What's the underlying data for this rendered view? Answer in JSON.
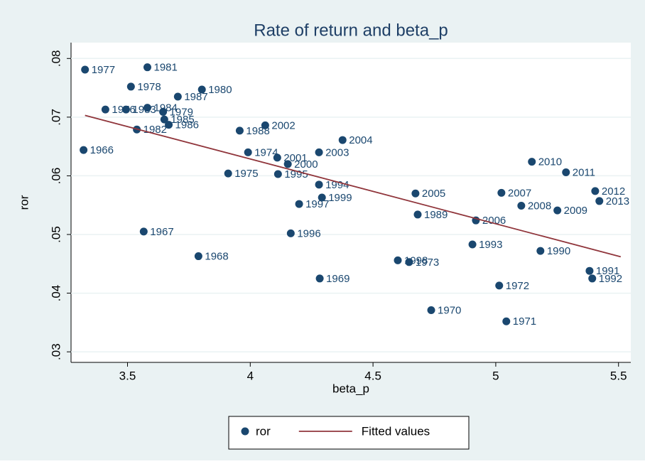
{
  "chart_data": {
    "type": "scatter",
    "title": "Rate of return and beta_p",
    "x_label": "beta_p",
    "y_label": "ror",
    "xlim": [
      3.27,
      5.55
    ],
    "ylim": [
      0.0282,
      0.0827
    ],
    "xticks": [
      3.5,
      4,
      4.5,
      5,
      5.5
    ],
    "yticks": [
      {
        "value": 0.03,
        "label": ".03"
      },
      {
        "value": 0.04,
        "label": ".04"
      },
      {
        "value": 0.05,
        "label": ".05"
      },
      {
        "value": 0.06,
        "label": ".06"
      },
      {
        "value": 0.07,
        "label": ".07"
      },
      {
        "value": 0.08,
        "label": ".08"
      }
    ],
    "grid": true,
    "legend_position": "bottom",
    "series": [
      {
        "name": "ror",
        "type": "scatter",
        "color": "#1a476f",
        "point_labels": [
          "1977",
          "1981",
          "1978",
          "1987",
          "1980",
          "1976",
          "1983",
          "1984",
          "1979",
          "1985",
          "1982",
          "1986",
          "1988",
          "2002",
          "2004",
          "1966",
          "1974",
          "2001",
          "2003",
          "2000",
          "1975",
          "1995",
          "1994",
          "1999",
          "1997",
          "2005",
          "1989",
          "2007",
          "2008",
          "2009",
          "2010",
          "2011",
          "2012",
          "2013",
          "2006",
          "1967",
          "1996",
          "1993",
          "1990",
          "1968",
          "1998",
          "1973",
          "1969",
          "1991",
          "1992",
          "1972",
          "1970",
          "1971"
        ],
        "x": [
          3.327,
          3.581,
          3.514,
          3.705,
          3.803,
          3.41,
          3.494,
          3.581,
          3.645,
          3.65,
          3.538,
          3.668,
          3.957,
          4.061,
          4.376,
          3.321,
          3.991,
          4.11,
          4.28,
          4.153,
          3.91,
          4.113,
          4.28,
          4.292,
          4.199,
          4.673,
          4.682,
          5.023,
          5.104,
          5.251,
          5.147,
          5.286,
          5.405,
          5.422,
          4.919,
          3.566,
          4.165,
          4.905,
          5.182,
          3.789,
          4.601,
          4.647,
          4.283,
          5.382,
          5.393,
          5.014,
          4.737,
          5.043
        ],
        "values": [
          0.0781,
          0.0785,
          0.0752,
          0.0735,
          0.0747,
          0.0713,
          0.0713,
          0.0716,
          0.0709,
          0.0696,
          0.0679,
          0.0687,
          0.0677,
          0.0686,
          0.0661,
          0.0644,
          0.064,
          0.0631,
          0.064,
          0.062,
          0.0604,
          0.0603,
          0.0585,
          0.0563,
          0.0552,
          0.057,
          0.0534,
          0.0571,
          0.0549,
          0.0541,
          0.0624,
          0.0606,
          0.0574,
          0.0557,
          0.0524,
          0.0505,
          0.0502,
          0.0483,
          0.0472,
          0.0463,
          0.0456,
          0.0453,
          0.0425,
          0.0438,
          0.0425,
          0.0413,
          0.0371,
          0.0352
        ]
      },
      {
        "name": "Fitted values",
        "type": "line",
        "color": "#90353b",
        "x": [
          3.327,
          5.509
        ],
        "values": [
          0.0703,
          0.0462
        ]
      }
    ]
  }
}
